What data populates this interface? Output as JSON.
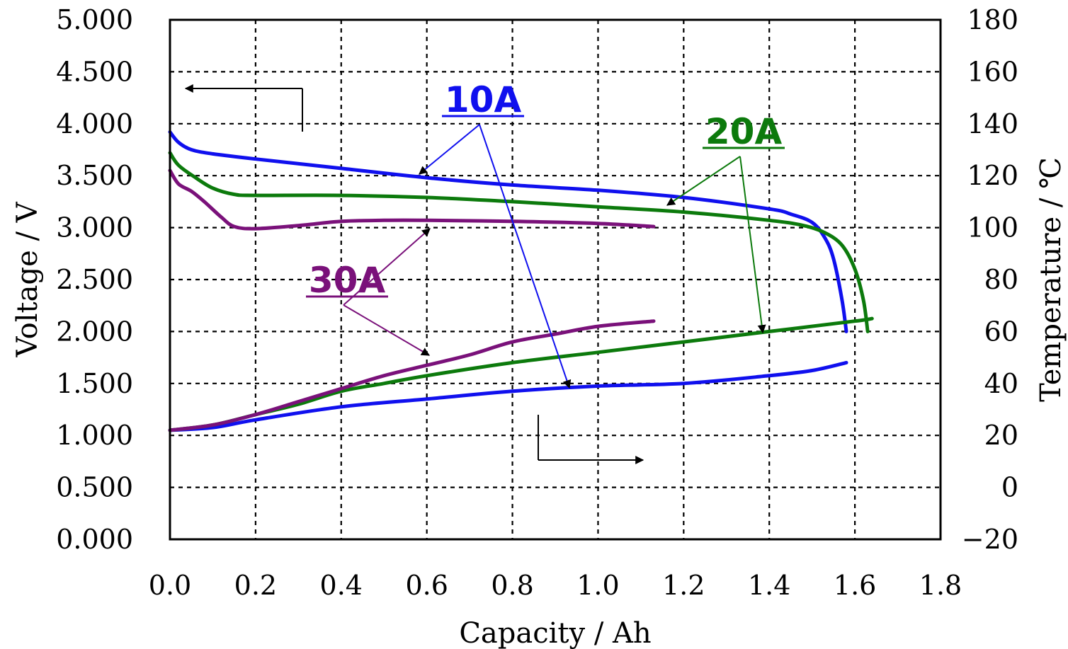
{
  "chart_data": {
    "type": "line",
    "xlabel": "Capacity / Ah",
    "ylabel_left": "Voltage / V",
    "ylabel_right": "Temperature / ℃",
    "xlim": [
      0,
      1.8
    ],
    "ylim_left": [
      0,
      5
    ],
    "ylim_right": [
      -20,
      180
    ],
    "grid": true,
    "x_ticks": [
      "0.0",
      "0.2",
      "0.4",
      "0.6",
      "0.8",
      "1.0",
      "1.2",
      "1.4",
      "1.6",
      "1.8"
    ],
    "y_left_ticks": [
      "0.000",
      "0.500",
      "1.000",
      "1.500",
      "2.000",
      "2.500",
      "3.000",
      "3.500",
      "4.000",
      "4.500",
      "5.000"
    ],
    "y_right_ticks": [
      "-20",
      "0",
      "20",
      "40",
      "60",
      "80",
      "100",
      "120",
      "140",
      "160",
      "180"
    ],
    "colors": {
      "10A": "#1010ee",
      "20A": "#0c7a0c",
      "30A": "#7a117a"
    },
    "annotations": [
      {
        "text": "10A",
        "color": "#1010ee"
      },
      {
        "text": "20A",
        "color": "#0c7a0c"
      },
      {
        "text": "30A",
        "color": "#7a117a"
      }
    ],
    "series": [
      {
        "current": "10A",
        "axis": "left",
        "quantity": "voltage",
        "x": [
          0.0,
          0.02,
          0.05,
          0.1,
          0.2,
          0.4,
          0.6,
          0.8,
          1.0,
          1.2,
          1.4,
          1.45,
          1.5,
          1.53,
          1.55,
          1.57,
          1.58
        ],
        "y": [
          3.92,
          3.82,
          3.75,
          3.71,
          3.66,
          3.57,
          3.48,
          3.41,
          3.36,
          3.29,
          3.18,
          3.13,
          3.05,
          2.9,
          2.7,
          2.3,
          2.0
        ]
      },
      {
        "current": "20A",
        "axis": "left",
        "quantity": "voltage",
        "x": [
          0.0,
          0.02,
          0.06,
          0.1,
          0.15,
          0.2,
          0.4,
          0.6,
          0.8,
          1.0,
          1.2,
          1.4,
          1.48,
          1.53,
          1.57,
          1.6,
          1.62,
          1.63
        ],
        "y": [
          3.72,
          3.6,
          3.48,
          3.38,
          3.32,
          3.31,
          3.31,
          3.29,
          3.25,
          3.2,
          3.15,
          3.07,
          3.02,
          2.95,
          2.83,
          2.6,
          2.3,
          2.0
        ]
      },
      {
        "current": "30A",
        "axis": "left",
        "quantity": "voltage",
        "x": [
          0.0,
          0.02,
          0.05,
          0.08,
          0.12,
          0.15,
          0.2,
          0.3,
          0.4,
          0.5,
          0.6,
          0.8,
          1.0,
          1.13
        ],
        "y": [
          3.55,
          3.42,
          3.35,
          3.25,
          3.1,
          3.01,
          2.99,
          3.02,
          3.06,
          3.07,
          3.07,
          3.06,
          3.04,
          3.01
        ]
      },
      {
        "current": "10A",
        "axis": "right",
        "quantity": "temperature",
        "x": [
          0.0,
          0.1,
          0.2,
          0.4,
          0.6,
          0.8,
          1.0,
          1.2,
          1.4,
          1.5,
          1.58
        ],
        "y": [
          22,
          23,
          26,
          31,
          34,
          37,
          39,
          40,
          43,
          45,
          48
        ]
      },
      {
        "current": "20A",
        "axis": "right",
        "quantity": "temperature",
        "x": [
          0.0,
          0.1,
          0.2,
          0.3,
          0.4,
          0.5,
          0.6,
          0.8,
          1.0,
          1.2,
          1.4,
          1.6,
          1.64
        ],
        "y": [
          22,
          24,
          28,
          32,
          37,
          40,
          43,
          48,
          52,
          56,
          60,
          64,
          65
        ]
      },
      {
        "current": "30A",
        "axis": "right",
        "quantity": "temperature",
        "x": [
          0.0,
          0.1,
          0.2,
          0.3,
          0.4,
          0.5,
          0.6,
          0.7,
          0.8,
          0.9,
          1.0,
          1.13
        ],
        "y": [
          22,
          24,
          28,
          33,
          38,
          43,
          47,
          51,
          56,
          59,
          62,
          64
        ]
      }
    ]
  }
}
